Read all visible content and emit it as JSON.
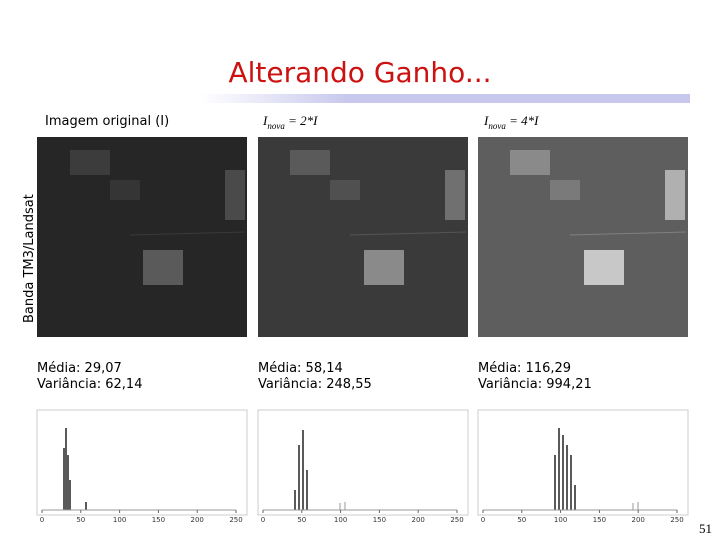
{
  "title": "Alterando Ganho...",
  "side_label": "Banda TM3/Landsat",
  "page_number": "51",
  "columns": [
    {
      "label": "Imagem original (I)",
      "mean": "Média: 29,07",
      "variance": "Variância: 62,14"
    },
    {
      "label_base": "I",
      "label_sub": "nova",
      "label_rest": " = 2*I",
      "mean": "Média: 58,14",
      "variance": "Variância: 248,55"
    },
    {
      "label_base": "I",
      "label_sub": "nova",
      "label_rest": " = 4*I",
      "mean": "Média: 116,29",
      "variance": "Variância: 994,21"
    }
  ],
  "histogram_xticks": [
    0,
    50,
    100,
    150,
    200,
    250
  ]
}
